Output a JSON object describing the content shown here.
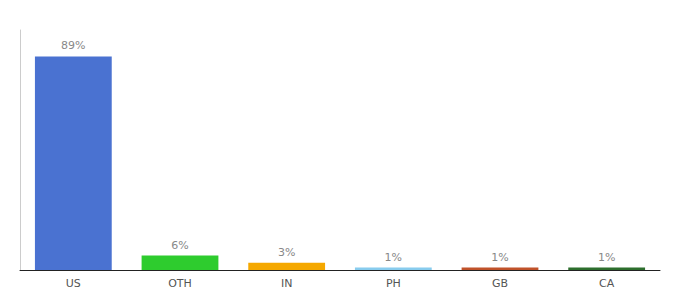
{
  "chart_data": {
    "type": "bar",
    "categories": [
      "US",
      "OTH",
      "IN",
      "PH",
      "GB",
      "CA"
    ],
    "values": [
      89,
      6,
      3,
      1,
      1,
      1
    ],
    "value_labels": [
      "89%",
      "6%",
      "3%",
      "1%",
      "1%",
      "1%"
    ],
    "data_labels": true,
    "colors": [
      "#4a72d1",
      "#2ecc2e",
      "#f5a800",
      "#88ccee",
      "#c0522a",
      "#2d6e2d"
    ],
    "ylim": [
      0,
      100
    ],
    "grid": false,
    "tick_labels": "x"
  }
}
